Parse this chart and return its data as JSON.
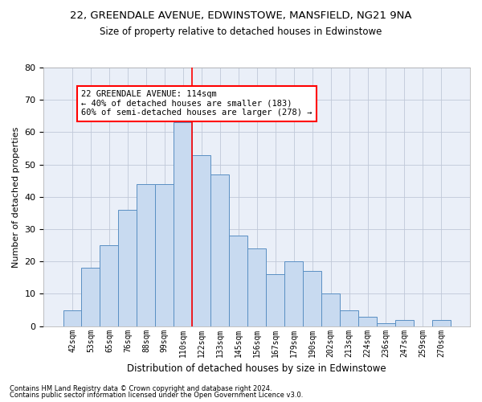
{
  "title1": "22, GREENDALE AVENUE, EDWINSTOWE, MANSFIELD, NG21 9NA",
  "title2": "Size of property relative to detached houses in Edwinstowe",
  "xlabel": "Distribution of detached houses by size in Edwinstowe",
  "ylabel": "Number of detached properties",
  "footnote1": "Contains HM Land Registry data © Crown copyright and database right 2024.",
  "footnote2": "Contains public sector information licensed under the Open Government Licence v3.0.",
  "bar_labels": [
    "42sqm",
    "53sqm",
    "65sqm",
    "76sqm",
    "88sqm",
    "99sqm",
    "110sqm",
    "122sqm",
    "133sqm",
    "145sqm",
    "156sqm",
    "167sqm",
    "179sqm",
    "190sqm",
    "202sqm",
    "213sqm",
    "224sqm",
    "236sqm",
    "247sqm",
    "259sqm",
    "270sqm"
  ],
  "bar_values": [
    5,
    18,
    25,
    36,
    44,
    44,
    63,
    53,
    47,
    28,
    24,
    16,
    20,
    17,
    10,
    5,
    3,
    1,
    2,
    0,
    2
  ],
  "bar_color": "#c8daf0",
  "bar_edgecolor": "#5a8fc3",
  "vline_color": "red",
  "vline_x_index": 6.5,
  "annotation_text": "22 GREENDALE AVENUE: 114sqm\n← 40% of detached houses are smaller (183)\n60% of semi-detached houses are larger (278) →",
  "annotation_box_color": "white",
  "annotation_box_edgecolor": "red",
  "ylim": [
    0,
    80
  ],
  "yticks": [
    0,
    10,
    20,
    30,
    40,
    50,
    60,
    70,
    80
  ],
  "grid_color": "#c0c8d8",
  "background_color": "#eaeff8"
}
